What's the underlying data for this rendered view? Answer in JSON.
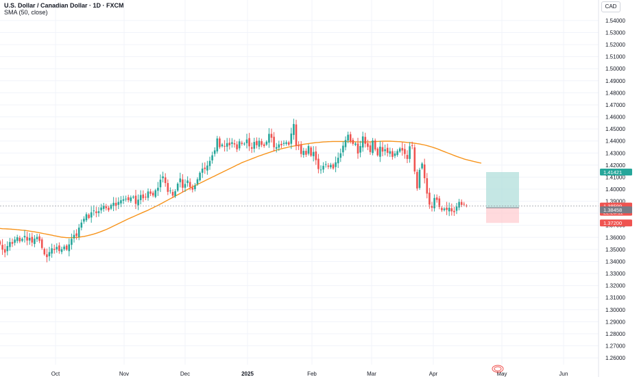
{
  "header": {
    "title": "U.S. Dollar / Canadian Dollar · 1D · FXCM",
    "indicator": "SMA (50, close)",
    "currency": "CAD"
  },
  "colors": {
    "up": "#26a69a",
    "down": "#ef5350",
    "sma": "#f7931a",
    "grid": "#f0f3fa",
    "profit_zone": "#b2dfdb",
    "loss_zone": "#ffcdd2",
    "last_price_line": "#9598a1"
  },
  "chart_data": {
    "type": "candlestick",
    "symbol": "USDCAD",
    "interval": "1D",
    "x_labels": [
      "Oct",
      "Nov",
      "Dec",
      "2025",
      "Feb",
      "Mar",
      "Apr",
      "May",
      "Jun"
    ],
    "y_ticks": [
      "1.54000",
      "1.53000",
      "1.52000",
      "1.51000",
      "1.50000",
      "1.49000",
      "1.48000",
      "1.47000",
      "1.46000",
      "1.45000",
      "1.44000",
      "1.43000",
      "1.42000",
      "1.41000",
      "1.40000",
      "1.39000",
      "1.38000",
      "1.37000",
      "1.36000",
      "1.35000",
      "1.34000",
      "1.33000",
      "1.32000",
      "1.31000",
      "1.30000",
      "1.29000",
      "1.28000",
      "1.27000",
      "1.26000"
    ],
    "ylim": [
      1.2555,
      1.5445
    ],
    "close": [
      1.3542,
      1.3498,
      1.3474,
      1.3528,
      1.3561,
      1.3547,
      1.3582,
      1.3601,
      1.3567,
      1.3588,
      1.3612,
      1.3574,
      1.3596,
      1.3557,
      1.3589,
      1.3604,
      1.3571,
      1.3512,
      1.3459,
      1.3436,
      1.3478,
      1.3509,
      1.3496,
      1.3521,
      1.3487,
      1.3502,
      1.3524,
      1.3498,
      1.3542,
      1.3588,
      1.3621,
      1.3612,
      1.3681,
      1.3723,
      1.3754,
      1.3792,
      1.3761,
      1.3808,
      1.3823,
      1.3802,
      1.3817,
      1.3848,
      1.3861,
      1.3842,
      1.3826,
      1.3869,
      1.3887,
      1.3862,
      1.3894,
      1.3908,
      1.3916,
      1.3921,
      1.3909,
      1.3931,
      1.3938,
      1.3878,
      1.3913,
      1.3952,
      1.3925,
      1.3936,
      1.3981,
      1.3962,
      1.3948,
      1.3991,
      1.4012,
      1.4079,
      1.4106,
      1.4051,
      1.3978,
      1.3989,
      1.3946,
      1.3984,
      1.4046,
      1.4089,
      1.4012,
      1.4043,
      1.4072,
      1.4018,
      1.3996,
      1.4031,
      1.4082,
      1.4136,
      1.4171,
      1.4167,
      1.4196,
      1.4235,
      1.4281,
      1.4322,
      1.4421,
      1.4349,
      1.4371,
      1.4356,
      1.4382,
      1.4364,
      1.4389,
      1.4372,
      1.4331,
      1.4397,
      1.4376,
      1.4378,
      1.4412,
      1.4356,
      1.4336,
      1.4392,
      1.4365,
      1.4402,
      1.4368,
      1.4358,
      1.4394,
      1.4459,
      1.4427,
      1.4348,
      1.4349,
      1.4372,
      1.4364,
      1.4384,
      1.4389,
      1.4369,
      1.4462,
      1.4541,
      1.4359,
      1.4356,
      1.4292,
      1.4318,
      1.4286,
      1.4358,
      1.4278,
      1.4309,
      1.4241,
      1.4167,
      1.4163,
      1.4194,
      1.4208,
      1.4186,
      1.4202,
      1.4172,
      1.4223,
      1.4261,
      1.4298,
      1.4361,
      1.4408,
      1.4452,
      1.4398,
      1.4376,
      1.4379,
      1.4296,
      1.4358,
      1.4438,
      1.4377,
      1.4351,
      1.4308,
      1.4404,
      1.4329,
      1.4281,
      1.4353,
      1.4312,
      1.4331,
      1.4302,
      1.4315,
      1.4268,
      1.4296,
      1.4316,
      1.4338,
      1.4321,
      1.4292,
      1.4251,
      1.4356,
      1.4359,
      1.4147,
      1.4006,
      1.4161,
      1.4213,
      1.4091,
      1.3963,
      1.3872,
      1.3846,
      1.3927,
      1.3911,
      1.3852,
      1.3826,
      1.3839,
      1.3828,
      1.3846,
      1.3816,
      1.3809,
      1.3856,
      1.3894,
      1.387,
      1.3876,
      1.386
    ],
    "sma_50": [
      1.3674,
      1.3672,
      1.3671,
      1.367,
      1.3669,
      1.3667,
      1.3666,
      1.3664,
      1.3662,
      1.366,
      1.3658,
      1.3655,
      1.3652,
      1.3649,
      1.3646,
      1.3642,
      1.3638,
      1.3634,
      1.363,
      1.3626,
      1.3622,
      1.3618,
      1.3614,
      1.361,
      1.3606,
      1.3602,
      1.36,
      1.3598,
      1.3598,
      1.3598,
      1.3599,
      1.36,
      1.3602,
      1.3605,
      1.3608,
      1.3612,
      1.3617,
      1.3622,
      1.3628,
      1.3634,
      1.3641,
      1.3649,
      1.3657,
      1.3665,
      1.3674,
      1.3684,
      1.3694,
      1.3704,
      1.3714,
      1.3724,
      1.3734,
      1.3744,
      1.3754,
      1.3763,
      1.3772,
      1.3781,
      1.379,
      1.3799,
      1.3808,
      1.3817,
      1.3826,
      1.3836,
      1.3846,
      1.3856,
      1.3866,
      1.3877,
      1.3888,
      1.3899,
      1.391,
      1.3921,
      1.3932,
      1.3943,
      1.3954,
      1.3965,
      1.3976,
      1.3987,
      1.3998,
      1.4009,
      1.402,
      1.403,
      1.404,
      1.405,
      1.406,
      1.407,
      1.408,
      1.409,
      1.41,
      1.411,
      1.412,
      1.413,
      1.414,
      1.415,
      1.416,
      1.417,
      1.418,
      1.419,
      1.42,
      1.421,
      1.422,
      1.4228,
      1.4236,
      1.4244,
      1.4252,
      1.426,
      1.4268,
      1.4276,
      1.4283,
      1.429,
      1.4297,
      1.4304,
      1.4311,
      1.4318,
      1.4324,
      1.433,
      1.4335,
      1.434,
      1.4345,
      1.435,
      1.4354,
      1.4358,
      1.4362,
      1.4366,
      1.437,
      1.4373,
      1.4376,
      1.4379,
      1.4382,
      1.4384,
      1.4386,
      1.4388,
      1.439,
      1.4392,
      1.4393,
      1.4394,
      1.4395,
      1.4396,
      1.4396,
      1.4396,
      1.4396,
      1.4396,
      1.4396,
      1.4395,
      1.4395,
      1.4394,
      1.4393,
      1.4392,
      1.4392,
      1.4392,
      1.4392,
      1.4392,
      1.4393,
      1.4394,
      1.4395,
      1.4396,
      1.4397,
      1.4398,
      1.4398,
      1.4398,
      1.4398,
      1.4397,
      1.4396,
      1.4395,
      1.4394,
      1.4392,
      1.439,
      1.4388,
      1.4386,
      1.4384,
      1.4381,
      1.4378,
      1.4375,
      1.4371,
      1.4367,
      1.4362,
      1.4356,
      1.435,
      1.4343,
      1.4336,
      1.4328,
      1.432,
      1.4312,
      1.4304,
      1.4296,
      1.4288,
      1.428,
      1.4272,
      1.4265,
      1.4258,
      1.4251,
      1.4245,
      1.424,
      1.4235,
      1.423,
      1.4225,
      1.422,
      1.4216
    ],
    "position": {
      "target": 1.41421,
      "entry": 1.38458,
      "stop": 1.372,
      "last_price": 1.38599,
      "countdown": "22:23:11"
    },
    "price_labels": {
      "target": "1.41421",
      "last_price": "1.38599",
      "countdown": "22:23:11",
      "entry": "1.38458",
      "stop": "1.37200"
    }
  }
}
